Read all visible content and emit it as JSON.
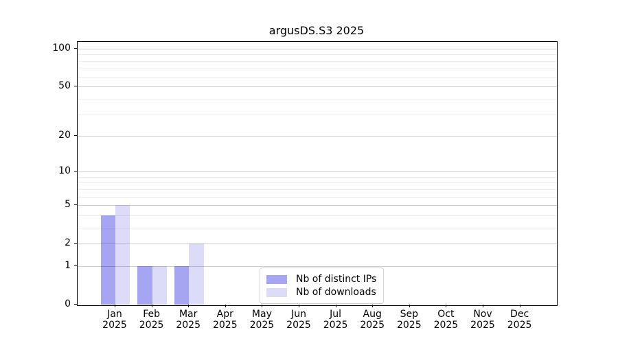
{
  "figure": {
    "title": "argusDS.S3 2025"
  },
  "chart_data": {
    "type": "bar",
    "title": "argusDS.S3 2025",
    "categories": [
      "Jan 2025",
      "Feb 2025",
      "Mar 2025",
      "Apr 2025",
      "May 2025",
      "Jun 2025",
      "Jul 2025",
      "Aug 2025",
      "Sep 2025",
      "Oct 2025",
      "Nov 2025",
      "Dec 2025"
    ],
    "x_tick_months": [
      "Jan",
      "Feb",
      "Mar",
      "Apr",
      "May",
      "Jun",
      "Jul",
      "Aug",
      "Sep",
      "Oct",
      "Nov",
      "Dec"
    ],
    "x_tick_year": "2025",
    "series": [
      {
        "name": "Nb of distinct IPs",
        "key": "distinct-ips",
        "color": "#a5a5f1",
        "values": [
          4,
          1,
          1,
          0,
          0,
          0,
          0,
          0,
          0,
          0,
          0,
          0
        ]
      },
      {
        "name": "Nb of downloads",
        "key": "downloads",
        "color": "#dcdcf8",
        "values": [
          5,
          1,
          2,
          0,
          0,
          0,
          0,
          0,
          0,
          0,
          0,
          0
        ]
      }
    ],
    "y_axis": {
      "scale": "log1p",
      "major_ticks": [
        0,
        1,
        2,
        5,
        10,
        20,
        50,
        100
      ],
      "minor_ticks": [
        3,
        4,
        6,
        7,
        8,
        9,
        30,
        40,
        60,
        70,
        80,
        90
      ],
      "range": [
        0,
        113
      ]
    },
    "grid": "on",
    "legend_position": "lower-center-inside"
  },
  "colors": {
    "bar_distinct_ips": "#a5a5f1",
    "bar_downloads": "#dcdcf8",
    "grid_major": "#cccccc",
    "grid_minor": "#ededed",
    "axis": "#000000",
    "legend_border": "#d2d2d2",
    "background": "#ffffff",
    "text": "#000000"
  }
}
